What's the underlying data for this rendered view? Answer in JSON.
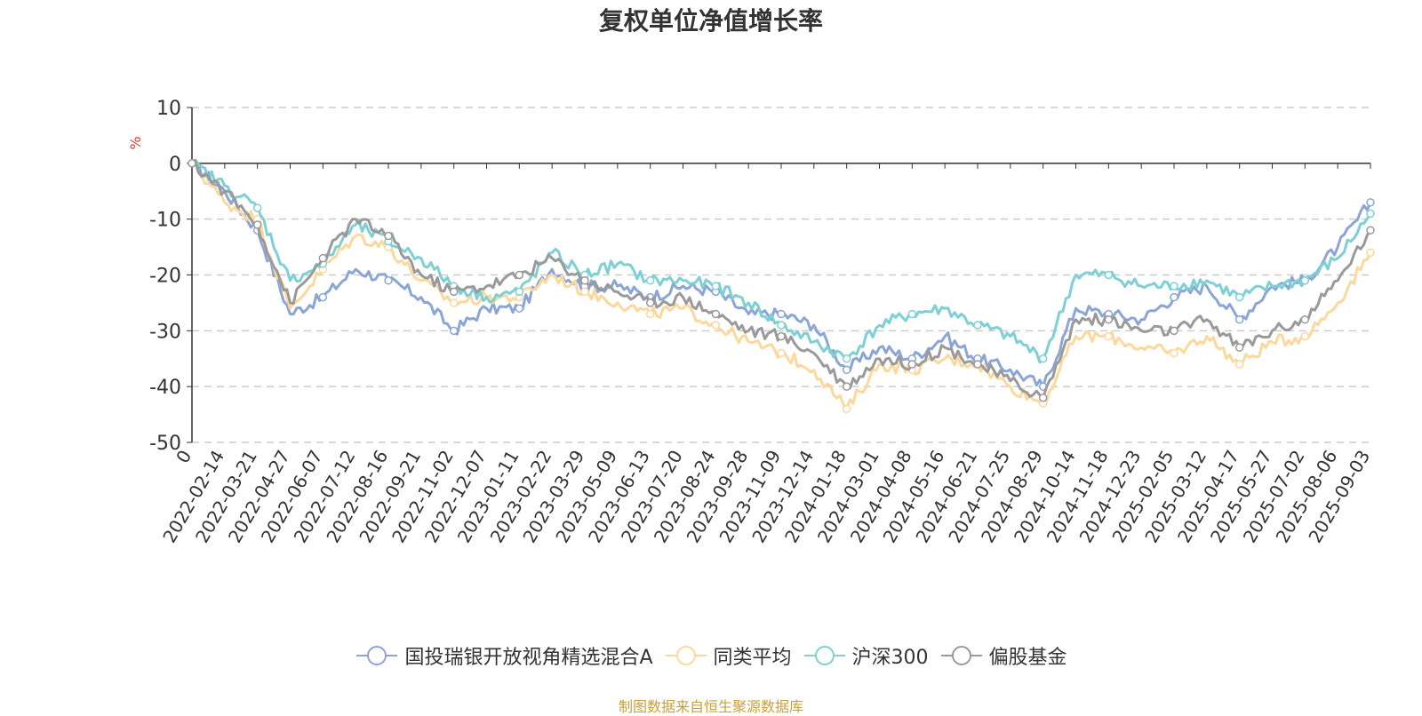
{
  "chart_data": {
    "type": "line",
    "title": "复权单位净值增长率",
    "ylabel": "%",
    "ylim": [
      -50,
      10
    ],
    "yticks": [
      10,
      0,
      -10,
      -20,
      -30,
      -40,
      -50
    ],
    "grid": true,
    "legend_position": "bottom",
    "x_tick_labels": [
      "0",
      "2022-02-14",
      "2022-03-21",
      "2022-04-27",
      "2022-06-07",
      "2022-07-12",
      "2022-08-16",
      "2022-09-21",
      "2022-11-02",
      "2022-12-07",
      "2023-01-11",
      "2023-02-22",
      "2023-03-29",
      "2023-05-09",
      "2023-06-13",
      "2023-07-20",
      "2023-08-24",
      "2023-09-28",
      "2023-11-09",
      "2023-12-14",
      "2024-01-18",
      "2024-03-01",
      "2024-04-08",
      "2024-05-16",
      "2024-06-21",
      "2024-07-25",
      "2024-08-29",
      "2024-10-14",
      "2024-11-18",
      "2024-12-23",
      "2025-02-05",
      "2025-03-12",
      "2025-04-17",
      "2025-05-27",
      "2025-07-02",
      "2025-08-06",
      "2025-09-03"
    ],
    "series": [
      {
        "name": "国投瑞银开放视角精选混合A",
        "color": "#8ba6d6",
        "values": [
          0,
          -5,
          -12,
          -27,
          -24,
          -19,
          -21,
          -24,
          -30,
          -26,
          -26,
          -19,
          -22,
          -22,
          -24,
          -22,
          -23,
          -27,
          -27,
          -29,
          -37,
          -33,
          -35,
          -31,
          -35,
          -37,
          -40,
          -26,
          -27,
          -28,
          -24,
          -22,
          -28,
          -22,
          -21,
          -15,
          -7
        ]
      },
      {
        "name": "同类平均",
        "color": "#fdd89d",
        "values": [
          0,
          -7,
          -10,
          -26,
          -19,
          -13,
          -15,
          -21,
          -25,
          -24,
          -24,
          -20,
          -23,
          -25,
          -27,
          -26,
          -29,
          -32,
          -34,
          -37,
          -44,
          -36,
          -37,
          -35,
          -36,
          -40,
          -43,
          -31,
          -31,
          -33,
          -34,
          -31,
          -36,
          -32,
          -31,
          -25,
          -16
        ]
      },
      {
        "name": "沪深300",
        "color": "#7fd0d4",
        "values": [
          0,
          -4,
          -8,
          -21,
          -18,
          -11,
          -14,
          -17,
          -22,
          -24,
          -23,
          -16,
          -20,
          -18,
          -21,
          -21,
          -22,
          -25,
          -29,
          -32,
          -35,
          -29,
          -27,
          -26,
          -29,
          -31,
          -35,
          -20,
          -20,
          -22,
          -22,
          -21,
          -24,
          -22,
          -21,
          -17,
          -9
        ]
      },
      {
        "name": "偏股基金",
        "color": "#9a9a9a",
        "values": [
          0,
          -5,
          -11,
          -25,
          -17,
          -10,
          -13,
          -20,
          -23,
          -22,
          -20,
          -17,
          -21,
          -23,
          -25,
          -24,
          -27,
          -30,
          -31,
          -34,
          -40,
          -35,
          -36,
          -33,
          -36,
          -39,
          -42,
          -28,
          -28,
          -30,
          -30,
          -28,
          -33,
          -30,
          -28,
          -21,
          -12
        ]
      }
    ]
  },
  "legend": {
    "items": [
      {
        "label": "国投瑞银开放视角精选混合A",
        "color": "#8ba6d6"
      },
      {
        "label": "同类平均",
        "color": "#fdd89d"
      },
      {
        "label": "沪深300",
        "color": "#7fd0d4"
      },
      {
        "label": "偏股基金",
        "color": "#9a9a9a"
      }
    ]
  },
  "footer": {
    "source": "制图数据来自恒生聚源数据库"
  }
}
